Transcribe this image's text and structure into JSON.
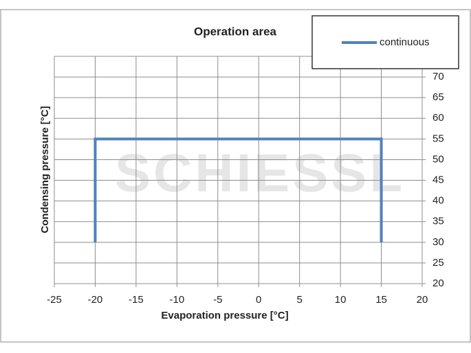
{
  "chart_data": {
    "type": "line",
    "title": "Operation area",
    "x_label": "Evaporation pressure [°C]",
    "y_label": "Condensing pressure [°C]",
    "watermark": "SCHIESSL",
    "x": [
      -20,
      -20,
      15,
      15
    ],
    "series": [
      {
        "name": "continuous",
        "color": "#4f81bd",
        "values": [
          30,
          55,
          55,
          30
        ]
      }
    ],
    "xlim": [
      -25,
      20
    ],
    "xticks": [
      -25,
      -20,
      -15,
      -10,
      -5,
      0,
      5,
      10,
      15,
      20
    ],
    "ylim": [
      20,
      75
    ],
    "yticks": [
      20,
      25,
      30,
      35,
      40,
      45,
      50,
      55,
      60,
      65,
      70
    ],
    "grid": true,
    "legend": "top-right",
    "y_axis_side": "right"
  }
}
